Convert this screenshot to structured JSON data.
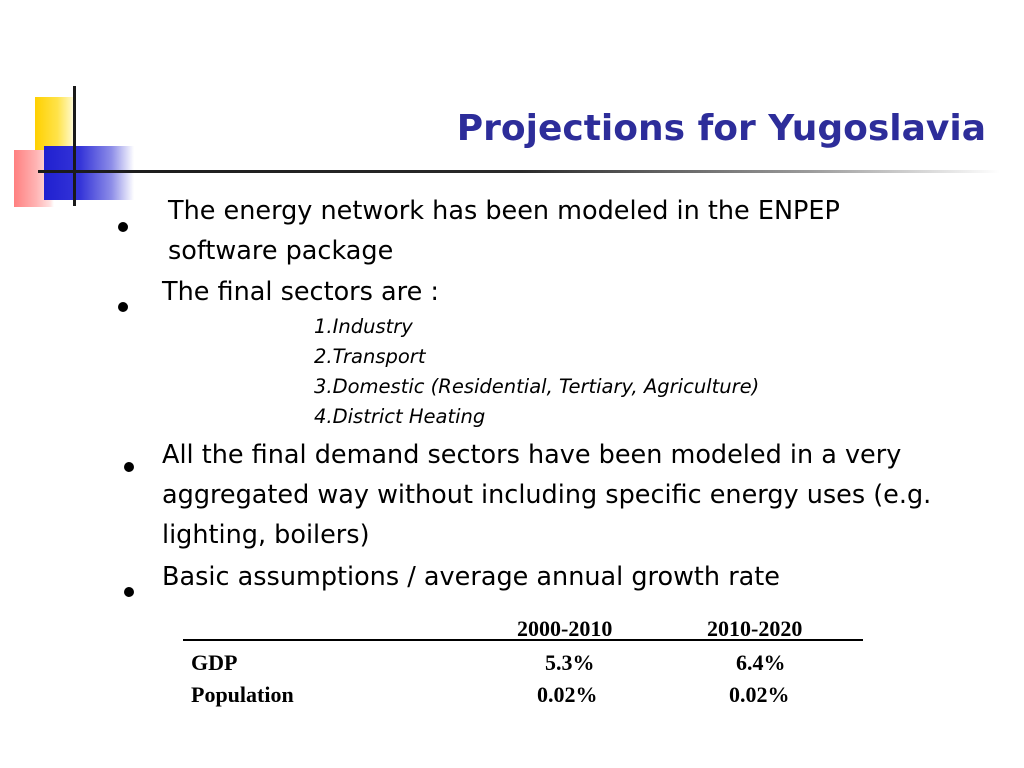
{
  "slide": {
    "title": "Projections for Yugoslavia",
    "bullets": [
      "The energy network has been modeled in the ENPEP software package",
      "The final sectors are :",
      "All the final demand sectors have been modeled in a very aggregated way without including specific energy uses (e.g. lighting, boilers)",
      "Basic assumptions / average annual growth rate"
    ],
    "sectors": [
      "1.Industry",
      "2.Transport",
      "3.Domestic (Residential, Tertiary, Agriculture)",
      "4.District Heating"
    ]
  },
  "growth_table": {
    "columns": [
      "2000-2010",
      "2010-2020"
    ],
    "rows": [
      {
        "label": "GDP",
        "values": [
          "5.3%",
          "6.4%"
        ]
      },
      {
        "label": "Population",
        "values": [
          "0.02%",
          "0.02%"
        ]
      }
    ]
  },
  "colors": {
    "title": "#2d2d9a",
    "accent_yellow": "#ffd000",
    "accent_red": "#ff8080",
    "accent_blue": "#2020d0"
  }
}
